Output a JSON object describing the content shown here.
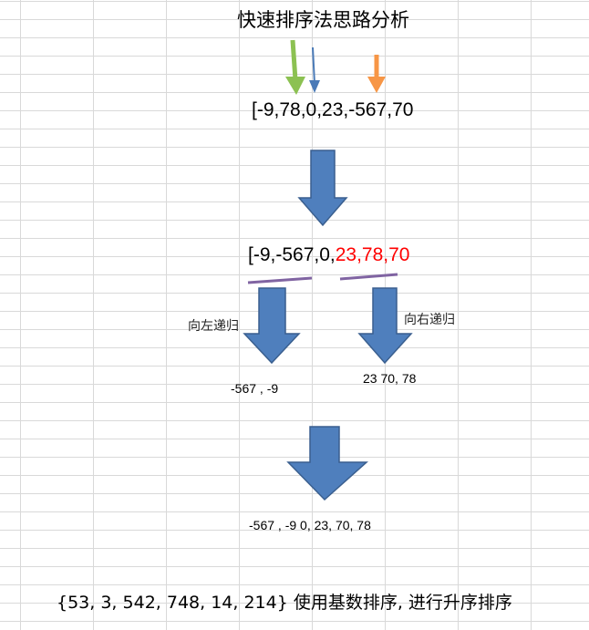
{
  "title": "快速排序法思路分析",
  "initial_array": "[-9,78,0,23,-567,70",
  "partitioned": {
    "left_part": "[-9,-567,0,",
    "right_part": "23,78,70"
  },
  "recurse_left_label": "向左递归",
  "recurse_right_label": "向右递归",
  "left_result": "-567  , -9",
  "right_result": "23 70, 78",
  "final_result": "-567 , -9  0, 23, 70, 78",
  "footer_text": "{53, 3, 542, 748, 14, 214} 使用基数排序, 进行升序排序",
  "colors": {
    "pointer_green": "#8cc152",
    "pointer_blue": "#4a7ab7",
    "pointer_orange": "#f79646",
    "flow_arrow": "#4f7fbd",
    "flow_arrow_border": "#3a5f8f",
    "partition_underline": "#8064a2",
    "highlight_red": "#ff0000"
  }
}
